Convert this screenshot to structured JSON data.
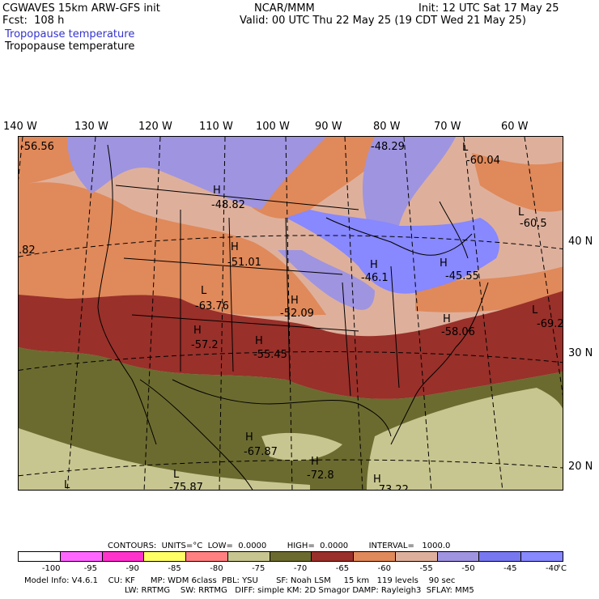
{
  "header": {
    "model_title": "CGWAVES 15km ARW-GFS init",
    "forecast": "Fcst:  108 h",
    "org": "NCAR/MMM",
    "init": "Init: 12 UTC Sat 17 May 25",
    "valid": "Valid: 00 UTC Thu 22 May 25 (19 CDT Wed 21 May 25)",
    "field_title_1": "Tropopause temperature",
    "field_title_2": "Tropopause temperature",
    "field_color_1": "#3333cc",
    "field_color_2": "#000000"
  },
  "lon_labels": [
    "140 W",
    "130 W",
    "120 W",
    "110 W",
    "100 W",
    "90 W",
    "80 W",
    "70 W",
    "60 W"
  ],
  "lat_labels": [
    "40 N",
    "30 N",
    "20 N"
  ],
  "map_labels": [
    {
      "text": "-56.56"
    },
    {
      "text": "-48.29"
    },
    {
      "text": "L"
    },
    {
      "text": "-60.04"
    },
    {
      "text": "H"
    },
    {
      "text": "-48.82"
    },
    {
      "text": "L"
    },
    {
      "text": "-60.5"
    },
    {
      "text": ".82"
    },
    {
      "text": "H"
    },
    {
      "text": "-51.01"
    },
    {
      "text": "H"
    },
    {
      "text": "-46.1"
    },
    {
      "text": "H"
    },
    {
      "text": "-45.55"
    },
    {
      "text": "L"
    },
    {
      "text": "-63.76"
    },
    {
      "text": "H"
    },
    {
      "text": "-52.09"
    },
    {
      "text": "L"
    },
    {
      "text": "-69.2"
    },
    {
      "text": "H"
    },
    {
      "text": "-57.2"
    },
    {
      "text": "H"
    },
    {
      "text": "-55.45"
    },
    {
      "text": "H"
    },
    {
      "text": "-58.06"
    },
    {
      "text": "H"
    },
    {
      "text": "-67.87"
    },
    {
      "text": "H"
    },
    {
      "text": "-72.8"
    },
    {
      "text": "L"
    },
    {
      "text": "-75.87"
    },
    {
      "text": "L"
    },
    {
      "text": "H"
    },
    {
      "text": "-73.22"
    }
  ],
  "contours": {
    "units_line": "CONTOURS:  UNITS=°C  LOW=  0.0000        HIGH=  0.0000        INTERVAL=   1000.0"
  },
  "colorbar": {
    "colors": [
      "#ffffff",
      "#ff66ff",
      "#ff33cc",
      "#ffff66",
      "#ff8080",
      "#c8c690",
      "#6b6b30",
      "#99302a",
      "#e0895a",
      "#deb09c",
      "#9f94e0",
      "#7777f0",
      "#8888ff"
    ],
    "labels": [
      "-100",
      "-95",
      "-90",
      "-85",
      "-80",
      "-75",
      "-70",
      "-65",
      "-60",
      "-55",
      "-50",
      "-45",
      "-40",
      "°C"
    ]
  },
  "footer": {
    "line1": "Model Info: V4.6.1    CU: KF      MP: WDM 6class  PBL: YSU       SF: Noah LSM     15 km   119 levels    90 sec",
    "line2": "LW: RRTMG    SW: RRTMG   DIFF: simple KM: 2D Smagor DAMP: Rayleigh3  SFLAY: MM5"
  },
  "colors": {
    "blue": "#8888ff",
    "purple": "#9f94e0",
    "pink": "#deb09c",
    "orange": "#e0895a",
    "red": "#99302a",
    "olive": "#6b6b30",
    "khaki": "#c8c690"
  }
}
